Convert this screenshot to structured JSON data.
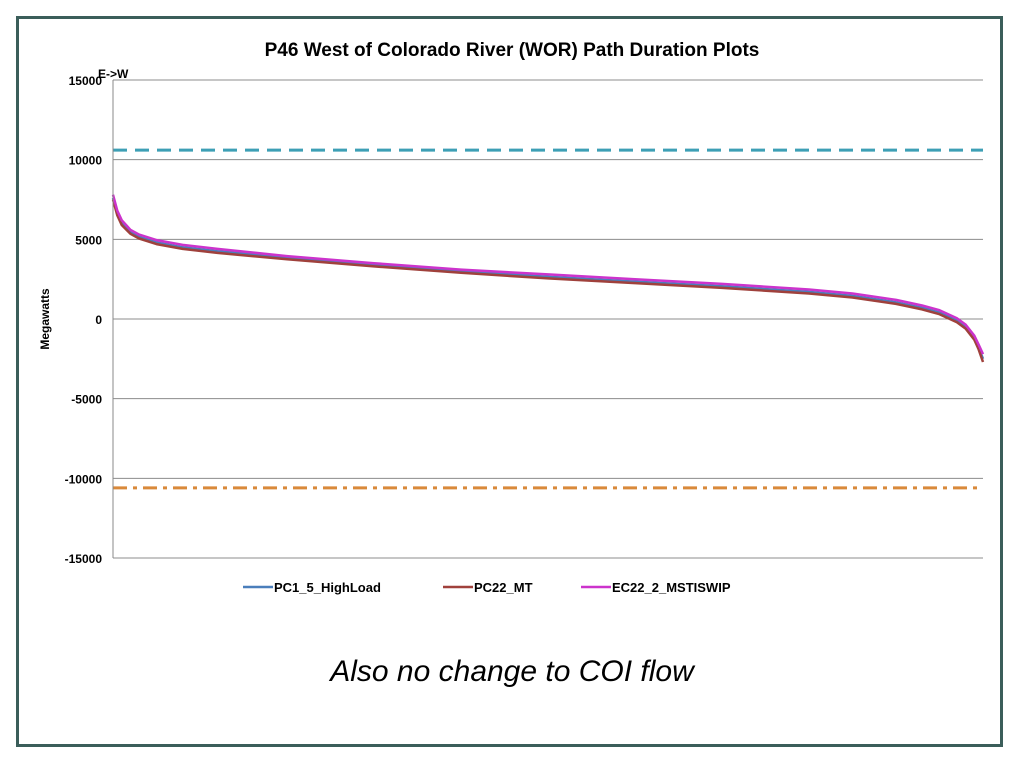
{
  "slide": {
    "caption": "Also no change to COI flow",
    "frame_color": "#3b5e5a"
  },
  "chart_data": {
    "type": "line",
    "title": "P46 West of Colorado River (WOR) Path Duration Plots",
    "ylabel": "Megawatts",
    "xlabel": "",
    "direction_label": "E->W",
    "ylim": [
      -15000,
      15000
    ],
    "yticks": [
      15000,
      10000,
      5000,
      0,
      -5000,
      -10000,
      -15000
    ],
    "grid": true,
    "legend_position": "bottom",
    "x": [
      0,
      0.005,
      0.01,
      0.02,
      0.03,
      0.05,
      0.08,
      0.12,
      0.2,
      0.3,
      0.4,
      0.5,
      0.6,
      0.7,
      0.8,
      0.85,
      0.9,
      0.93,
      0.95,
      0.97,
      0.98,
      0.99,
      0.995,
      1.0
    ],
    "series": [
      {
        "name": "PC1_5_HighLoad",
        "color": "#4a7ebb",
        "values": [
          7600,
          6600,
          6000,
          5450,
          5150,
          4800,
          4500,
          4250,
          3850,
          3400,
          3000,
          2650,
          2350,
          2050,
          1700,
          1450,
          1050,
          700,
          400,
          -100,
          -500,
          -1200,
          -1800,
          -2500
        ]
      },
      {
        "name": "PC22_MT",
        "color": "#a0413c",
        "values": [
          7500,
          6500,
          5900,
          5350,
          5050,
          4700,
          4400,
          4150,
          3750,
          3300,
          2900,
          2550,
          2250,
          1950,
          1600,
          1350,
          950,
          600,
          300,
          -200,
          -600,
          -1300,
          -1900,
          -2700
        ]
      },
      {
        "name": "EC22_2_MSTISWIP",
        "color": "#cc33cc",
        "values": [
          7800,
          6800,
          6200,
          5600,
          5300,
          4950,
          4650,
          4400,
          3950,
          3500,
          3100,
          2800,
          2500,
          2200,
          1850,
          1600,
          1200,
          850,
          550,
          50,
          -350,
          -1050,
          -1600,
          -2200
        ]
      }
    ],
    "limit_lines": [
      {
        "value": 10600,
        "color": "#3d9fb5",
        "style": "dashed"
      },
      {
        "value": -10600,
        "color": "#d9893a",
        "style": "dashdot"
      }
    ]
  }
}
